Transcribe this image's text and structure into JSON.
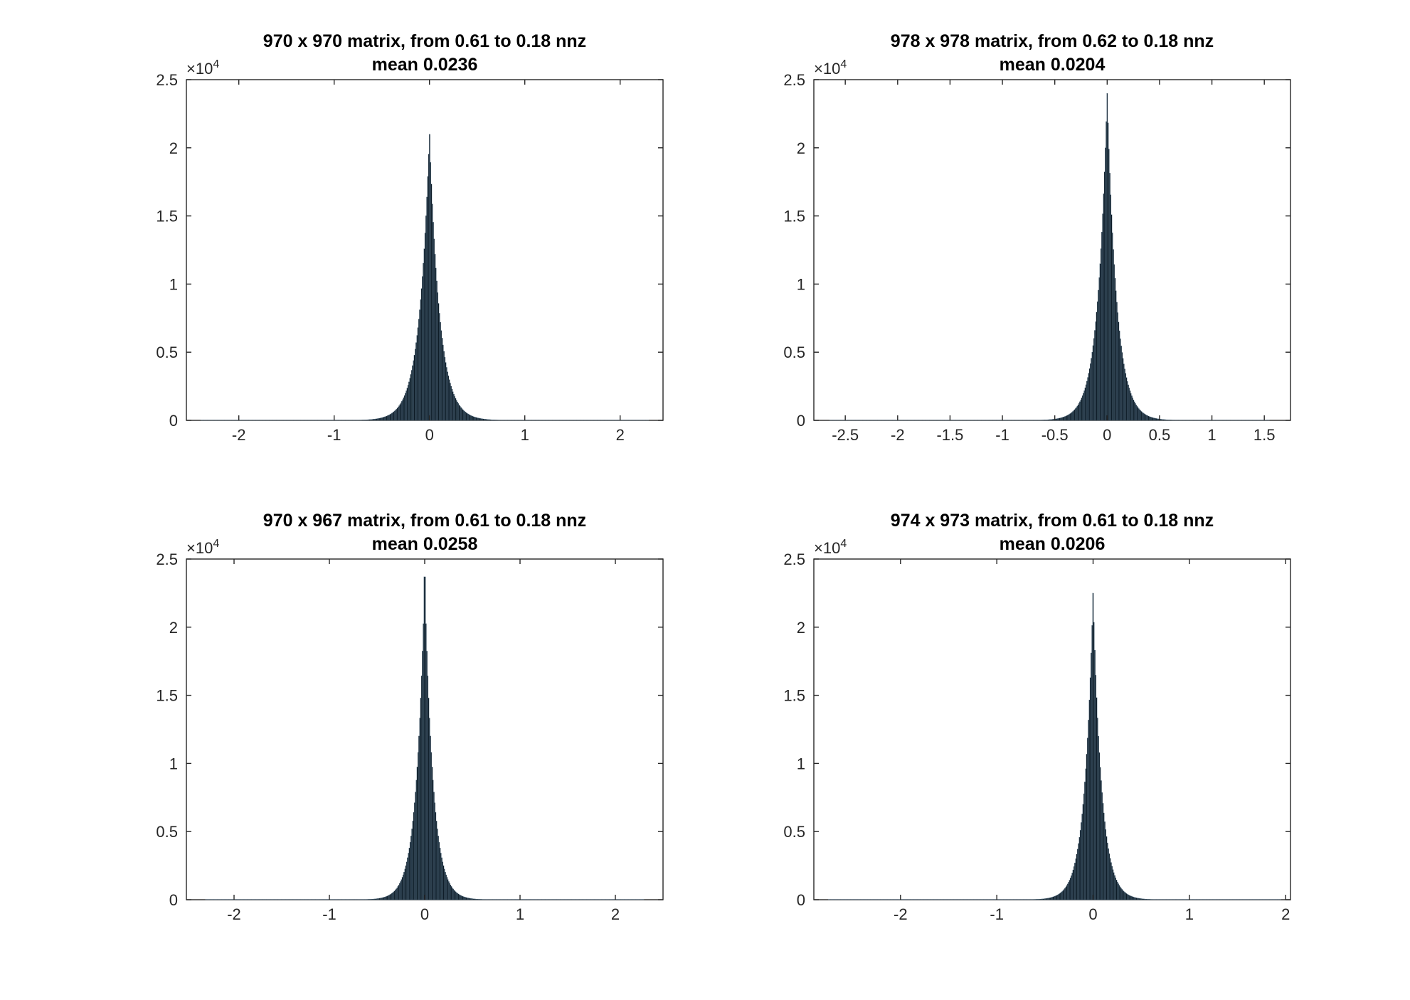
{
  "figure": {
    "background": "#ffffff",
    "bar_color": "#0d1b26",
    "bar_edge_color": "#5f7d94"
  },
  "chart_data": [
    {
      "type": "bar",
      "subtype": "histogram",
      "title": "970 x 970 matrix, from 0.61 to 0.18 nnz",
      "subtitle": "mean 0.0236",
      "xlabel": "",
      "ylabel": "",
      "xlim": [
        -2.55,
        2.45
      ],
      "ylim": [
        0,
        25000
      ],
      "xticks": [
        -2,
        -1,
        0,
        1,
        2
      ],
      "xtick_labels": [
        "-2",
        "-1",
        "0",
        "1",
        "2"
      ],
      "yticks": [
        0,
        5000,
        10000,
        15000,
        20000,
        25000
      ],
      "ytick_labels": [
        "0",
        "0.5",
        "1",
        "1.5",
        "2",
        "2.5"
      ],
      "y_exponent_label": "×10",
      "y_exponent_power": "4",
      "grid": false,
      "legend": "none",
      "distribution": {
        "range": [
          -2.4,
          2.3
        ],
        "bins": 500,
        "center": 0.0,
        "peak": 21000,
        "scale": 0.107,
        "shape": "laplace",
        "spike_value": 0.0,
        "spike_count": 21000
      }
    },
    {
      "type": "bar",
      "subtype": "histogram",
      "title": "978 x 978 matrix, from 0.62 to 0.18 nnz",
      "subtitle": "mean 0.0204",
      "xlabel": "",
      "ylabel": "",
      "xlim": [
        -2.8,
        1.75
      ],
      "ylim": [
        0,
        25000
      ],
      "xticks": [
        -2.5,
        -2,
        -1.5,
        -1,
        -0.5,
        0,
        0.5,
        1,
        1.5
      ],
      "xtick_labels": [
        "-2.5",
        "-2",
        "-1.5",
        "-1",
        "-0.5",
        "0",
        "0.5",
        "1",
        "1.5"
      ],
      "yticks": [
        0,
        5000,
        10000,
        15000,
        20000,
        25000
      ],
      "ytick_labels": [
        "0",
        "0.5",
        "1",
        "1.5",
        "2",
        "2.5"
      ],
      "y_exponent_label": "×10",
      "y_exponent_power": "4",
      "grid": false,
      "legend": "none",
      "distribution": {
        "range": [
          -2.65,
          1.55
        ],
        "bins": 500,
        "center": 0.0,
        "peak": 24000,
        "scale": 0.091,
        "shape": "laplace",
        "spike_value": 0.0,
        "spike_count": 24000
      }
    },
    {
      "type": "bar",
      "subtype": "histogram",
      "title": "970 x 967 matrix, from 0.61 to 0.18 nnz",
      "subtitle": "mean 0.0258",
      "xlabel": "",
      "ylabel": "",
      "xlim": [
        -2.5,
        2.5
      ],
      "ylim": [
        0,
        25000
      ],
      "xticks": [
        -2,
        -1,
        0,
        1,
        2
      ],
      "xtick_labels": [
        "-2",
        "-1",
        "0",
        "1",
        "2"
      ],
      "yticks": [
        0,
        5000,
        10000,
        15000,
        20000,
        25000
      ],
      "ytick_labels": [
        "0",
        "0.5",
        "1",
        "1.5",
        "2",
        "2.5"
      ],
      "y_exponent_label": "×10",
      "y_exponent_power": "4",
      "grid": false,
      "legend": "none",
      "distribution": {
        "range": [
          -2.3,
          2.3
        ],
        "bins": 500,
        "center": 0.0,
        "peak": 23700,
        "scale": 0.088,
        "shape": "laplace",
        "spike_value": 0.0,
        "spike_count": 23700
      }
    },
    {
      "type": "bar",
      "subtype": "histogram",
      "title": "974 x 973 matrix, from 0.61 to 0.18 nnz",
      "subtitle": "mean 0.0206",
      "xlabel": "",
      "ylabel": "",
      "xlim": [
        -2.9,
        2.05
      ],
      "ylim": [
        0,
        25000
      ],
      "xticks": [
        -2,
        -1,
        0,
        1,
        2
      ],
      "xtick_labels": [
        "-2",
        "-1",
        "0",
        "1",
        "2"
      ],
      "yticks": [
        0,
        5000,
        10000,
        15000,
        20000,
        25000
      ],
      "ytick_labels": [
        "0",
        "0.5",
        "1",
        "1.5",
        "2",
        "2.5"
      ],
      "y_exponent_label": "×10",
      "y_exponent_power": "4",
      "grid": false,
      "legend": "none",
      "distribution": {
        "range": [
          -2.75,
          1.95
        ],
        "bins": 500,
        "center": 0.0,
        "peak": 22500,
        "scale": 0.089,
        "shape": "laplace",
        "spike_value": 0.0,
        "spike_count": 22500
      }
    }
  ]
}
